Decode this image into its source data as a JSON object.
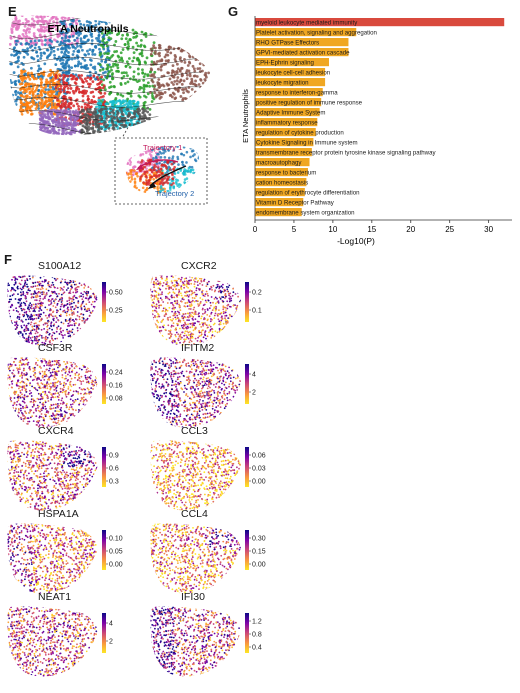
{
  "panels": {
    "e": {
      "letter": "E",
      "title": "ETA Neutrophils",
      "inset": {
        "trajectory1": "Trajectory 1",
        "trajectory2": "Trajectory 2"
      },
      "colors": [
        "#e377c2",
        "#1f77b4",
        "#2ca02c",
        "#8c564b",
        "#ff7f0e",
        "#d62728",
        "#9467bd",
        "#17becf"
      ]
    },
    "g": {
      "letter": "G",
      "ylabel": "ETA Neutrophils",
      "xlabel": "-Log10(P)"
    },
    "f": {
      "letter": "F",
      "colormap": [
        "#fde725",
        "#f89540",
        "#cc4778",
        "#7e03a8",
        "#0d0887"
      ]
    }
  },
  "chart_data": [
    {
      "type": "bar",
      "orientation": "horizontal",
      "xlabel": "-Log10(P)",
      "ylabel": "ETA Neutrophils",
      "xlim": [
        0,
        33
      ],
      "xticks": [
        0,
        5,
        10,
        15,
        20,
        25,
        30
      ],
      "grid": false,
      "categories": [
        "myeloid leukocyte mediated immunity",
        "Platelet activation, signaling and aggregation",
        "RHO GTPase Effectors",
        "GPVI-mediated activation cascade",
        "EPH-Ephrin signaling",
        "leukocyte cell-cell adhesion",
        "leukocyte migration",
        "response to interferon-gamma",
        "positive regulation of immune response",
        "Adaptive Immune System",
        "inflammatory response",
        "regulation of cytokine production",
        "Cytokine Signaling in Immune system",
        "transmembrane receptor protein tyrosine kinase signaling pathway",
        "macroautophagy",
        "response to bacterium",
        "cation homeostasis",
        "regulation of erythrocyte differentiation",
        "Vitamin D Receptor Pathway",
        "endomembrane system organization"
      ],
      "values": [
        32,
        13,
        12,
        12,
        9.5,
        9,
        9,
        8.7,
        8.5,
        8.3,
        8,
        7.8,
        7.5,
        7.3,
        7,
        6.8,
        6.6,
        6.4,
        6.2,
        6
      ],
      "colors": {
        "top": "#d94a3d",
        "rest": "#f0a722"
      }
    },
    {
      "type": "scatter",
      "name": "feature plots",
      "genes": [
        {
          "gene": "S100A12",
          "ticks": [
            "0.50",
            "0.25"
          ]
        },
        {
          "gene": "CXCR2",
          "ticks": [
            "0.2",
            "0.1"
          ]
        },
        {
          "gene": "CSF3R",
          "ticks": [
            "0.24",
            "0.16",
            "0.08"
          ]
        },
        {
          "gene": "IFITM2",
          "ticks": [
            "4",
            "2"
          ]
        },
        {
          "gene": "CXCR4",
          "ticks": [
            "0.9",
            "0.6",
            "0.3"
          ]
        },
        {
          "gene": "CCL3",
          "ticks": [
            "0.06",
            "0.03",
            "0.00"
          ]
        },
        {
          "gene": "HSPA1A",
          "ticks": [
            "0.10",
            "0.05",
            "0.00"
          ]
        },
        {
          "gene": "CCL4",
          "ticks": [
            "0.30",
            "0.15",
            "0.00"
          ]
        },
        {
          "gene": "NEAT1",
          "ticks": [
            "4",
            "2"
          ]
        },
        {
          "gene": "IFI30",
          "ticks": [
            "1.2",
            "0.8",
            "0.4"
          ]
        }
      ]
    }
  ]
}
